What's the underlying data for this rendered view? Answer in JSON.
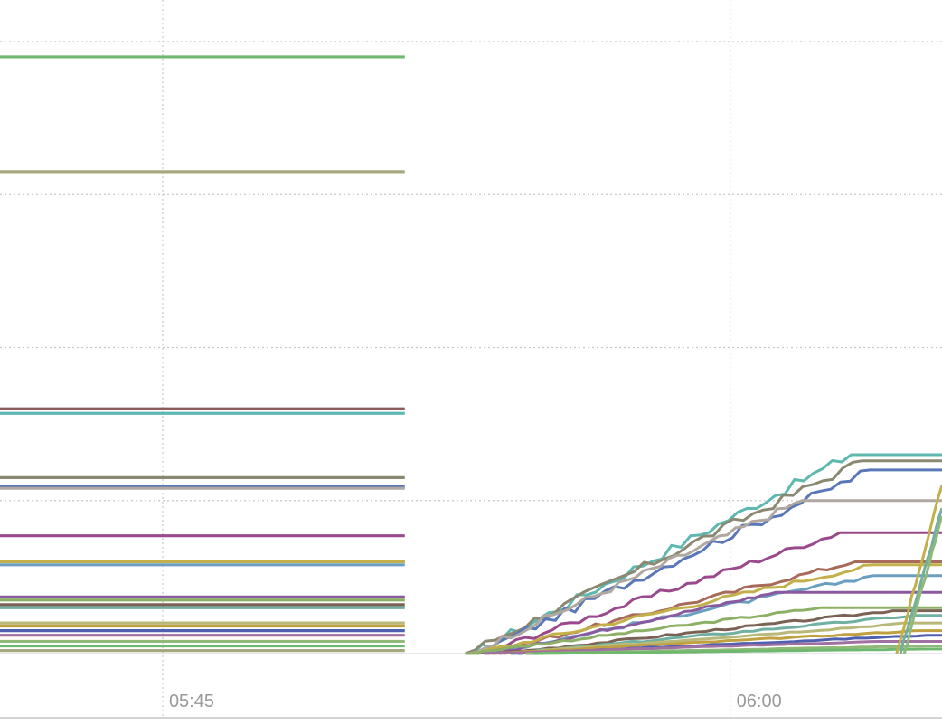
{
  "chart_data": {
    "type": "line",
    "title": "",
    "xlabel": "",
    "ylabel": "",
    "x_ticks": [
      "05:45",
      "06:00"
    ],
    "x_tick_minutes": [
      345,
      360
    ],
    "xlim_minutes": [
      340.7,
      365.6
    ],
    "ylim": [
      0,
      4
    ],
    "y_gridlines": [
      1,
      2,
      3,
      4
    ],
    "grid": true,
    "legend": "none",
    "gap_minutes": [
      351.4,
      352.8
    ],
    "colors": [
      "#6fb86f",
      "#a8a880",
      "#8b5a5a",
      "#5fb8b0",
      "#8a8870",
      "#5a78b8",
      "#b0a8a0",
      "#9a4a8a",
      "#a86a5a",
      "#c2b04a",
      "#6a9fc0",
      "#8a5aa0",
      "#8cb066",
      "#7a6355",
      "#6fb0a0",
      "#b8b878",
      "#c0a040",
      "#5060b0",
      "#a070a0",
      "#90b878"
    ],
    "before_gap_levels": [
      3.9,
      3.15,
      1.6,
      1.57,
      1.15,
      1.09,
      1.08,
      0.77,
      0.6,
      0.6,
      0.58,
      0.37,
      0.35,
      0.32,
      0.3,
      0.2,
      0.18,
      0.15,
      0.12,
      0.08,
      0.05,
      0.02
    ],
    "after_gap_series": [
      {
        "start": 353.2,
        "reach": 363.2,
        "level": 1.3
      },
      {
        "start": 353.0,
        "reach": 363.5,
        "level": 1.26
      },
      {
        "start": 353.3,
        "reach": 363.7,
        "level": 1.2
      },
      {
        "start": 353.1,
        "reach": 361.9,
        "level": 1.0
      },
      {
        "start": 353.4,
        "reach": 362.9,
        "level": 0.79
      },
      {
        "start": 353.5,
        "reach": 363.3,
        "level": 0.6
      },
      {
        "start": 353.2,
        "reach": 363.8,
        "level": 0.58
      },
      {
        "start": 353.6,
        "reach": 363.8,
        "level": 0.51
      },
      {
        "start": 353.8,
        "reach": 361.2,
        "level": 0.4
      },
      {
        "start": 353.0,
        "reach": 362.4,
        "level": 0.3
      },
      {
        "start": 353.9,
        "reach": 364.3,
        "level": 0.28
      },
      {
        "start": 354.2,
        "reach": 364.9,
        "level": 0.25
      },
      {
        "start": 354.0,
        "reach": 364.8,
        "level": 0.2
      },
      {
        "start": 353.7,
        "reach": 365.0,
        "level": 0.15
      },
      {
        "start": 354.4,
        "reach": 365.2,
        "level": 0.12
      },
      {
        "start": 353.5,
        "reach": 364.0,
        "level": 0.08
      },
      {
        "start": 354.6,
        "reach": 365.3,
        "level": 0.05
      },
      {
        "start": 354.8,
        "reach": 365.4,
        "level": 0.03
      }
    ],
    "late_series": [
      {
        "start": 364.4,
        "end": 365.6,
        "level": 1.1
      },
      {
        "start": 364.5,
        "end": 365.6,
        "level": 0.95
      },
      {
        "start": 364.6,
        "end": 365.6,
        "level": 0.9
      }
    ]
  }
}
